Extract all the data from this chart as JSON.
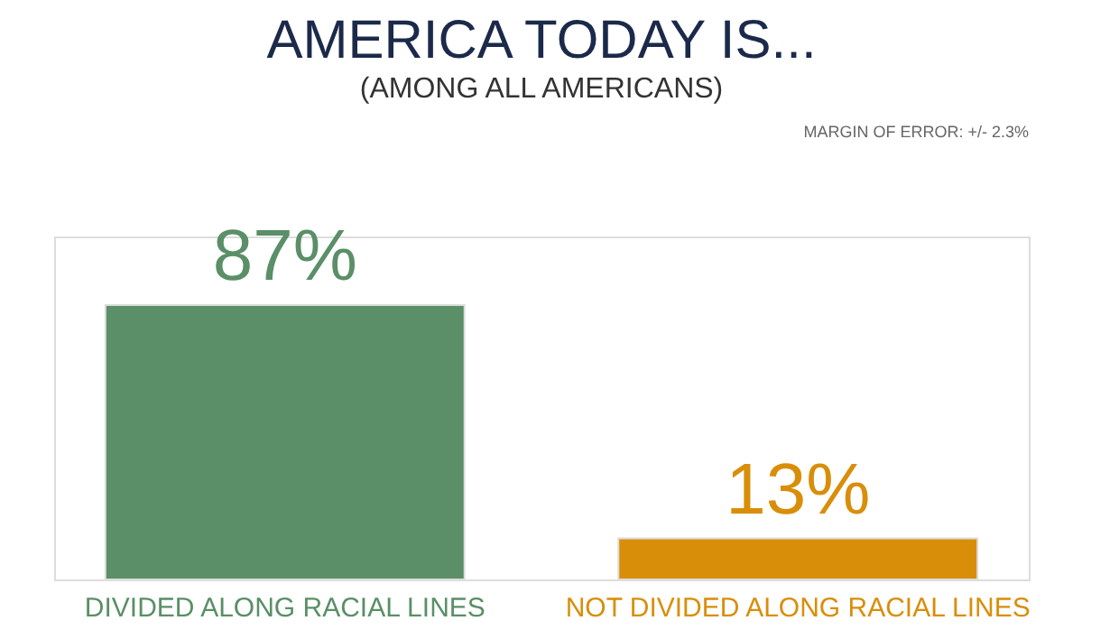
{
  "chart_data": {
    "type": "bar",
    "title": "AMERICA TODAY IS...",
    "subtitle": "(AMONG ALL AMERICANS)",
    "annotations": [
      "MARGIN OF ERROR: +/- 2.3%"
    ],
    "categories": [
      "DIVIDED ALONG RACIAL LINES",
      "NOT DIVIDED ALONG RACIAL LINES"
    ],
    "values": [
      87,
      13
    ],
    "colors": [
      "#5a8f67",
      "#d98e0a"
    ],
    "value_labels": [
      "87%",
      "13%"
    ],
    "grid": false,
    "legend": false
  }
}
